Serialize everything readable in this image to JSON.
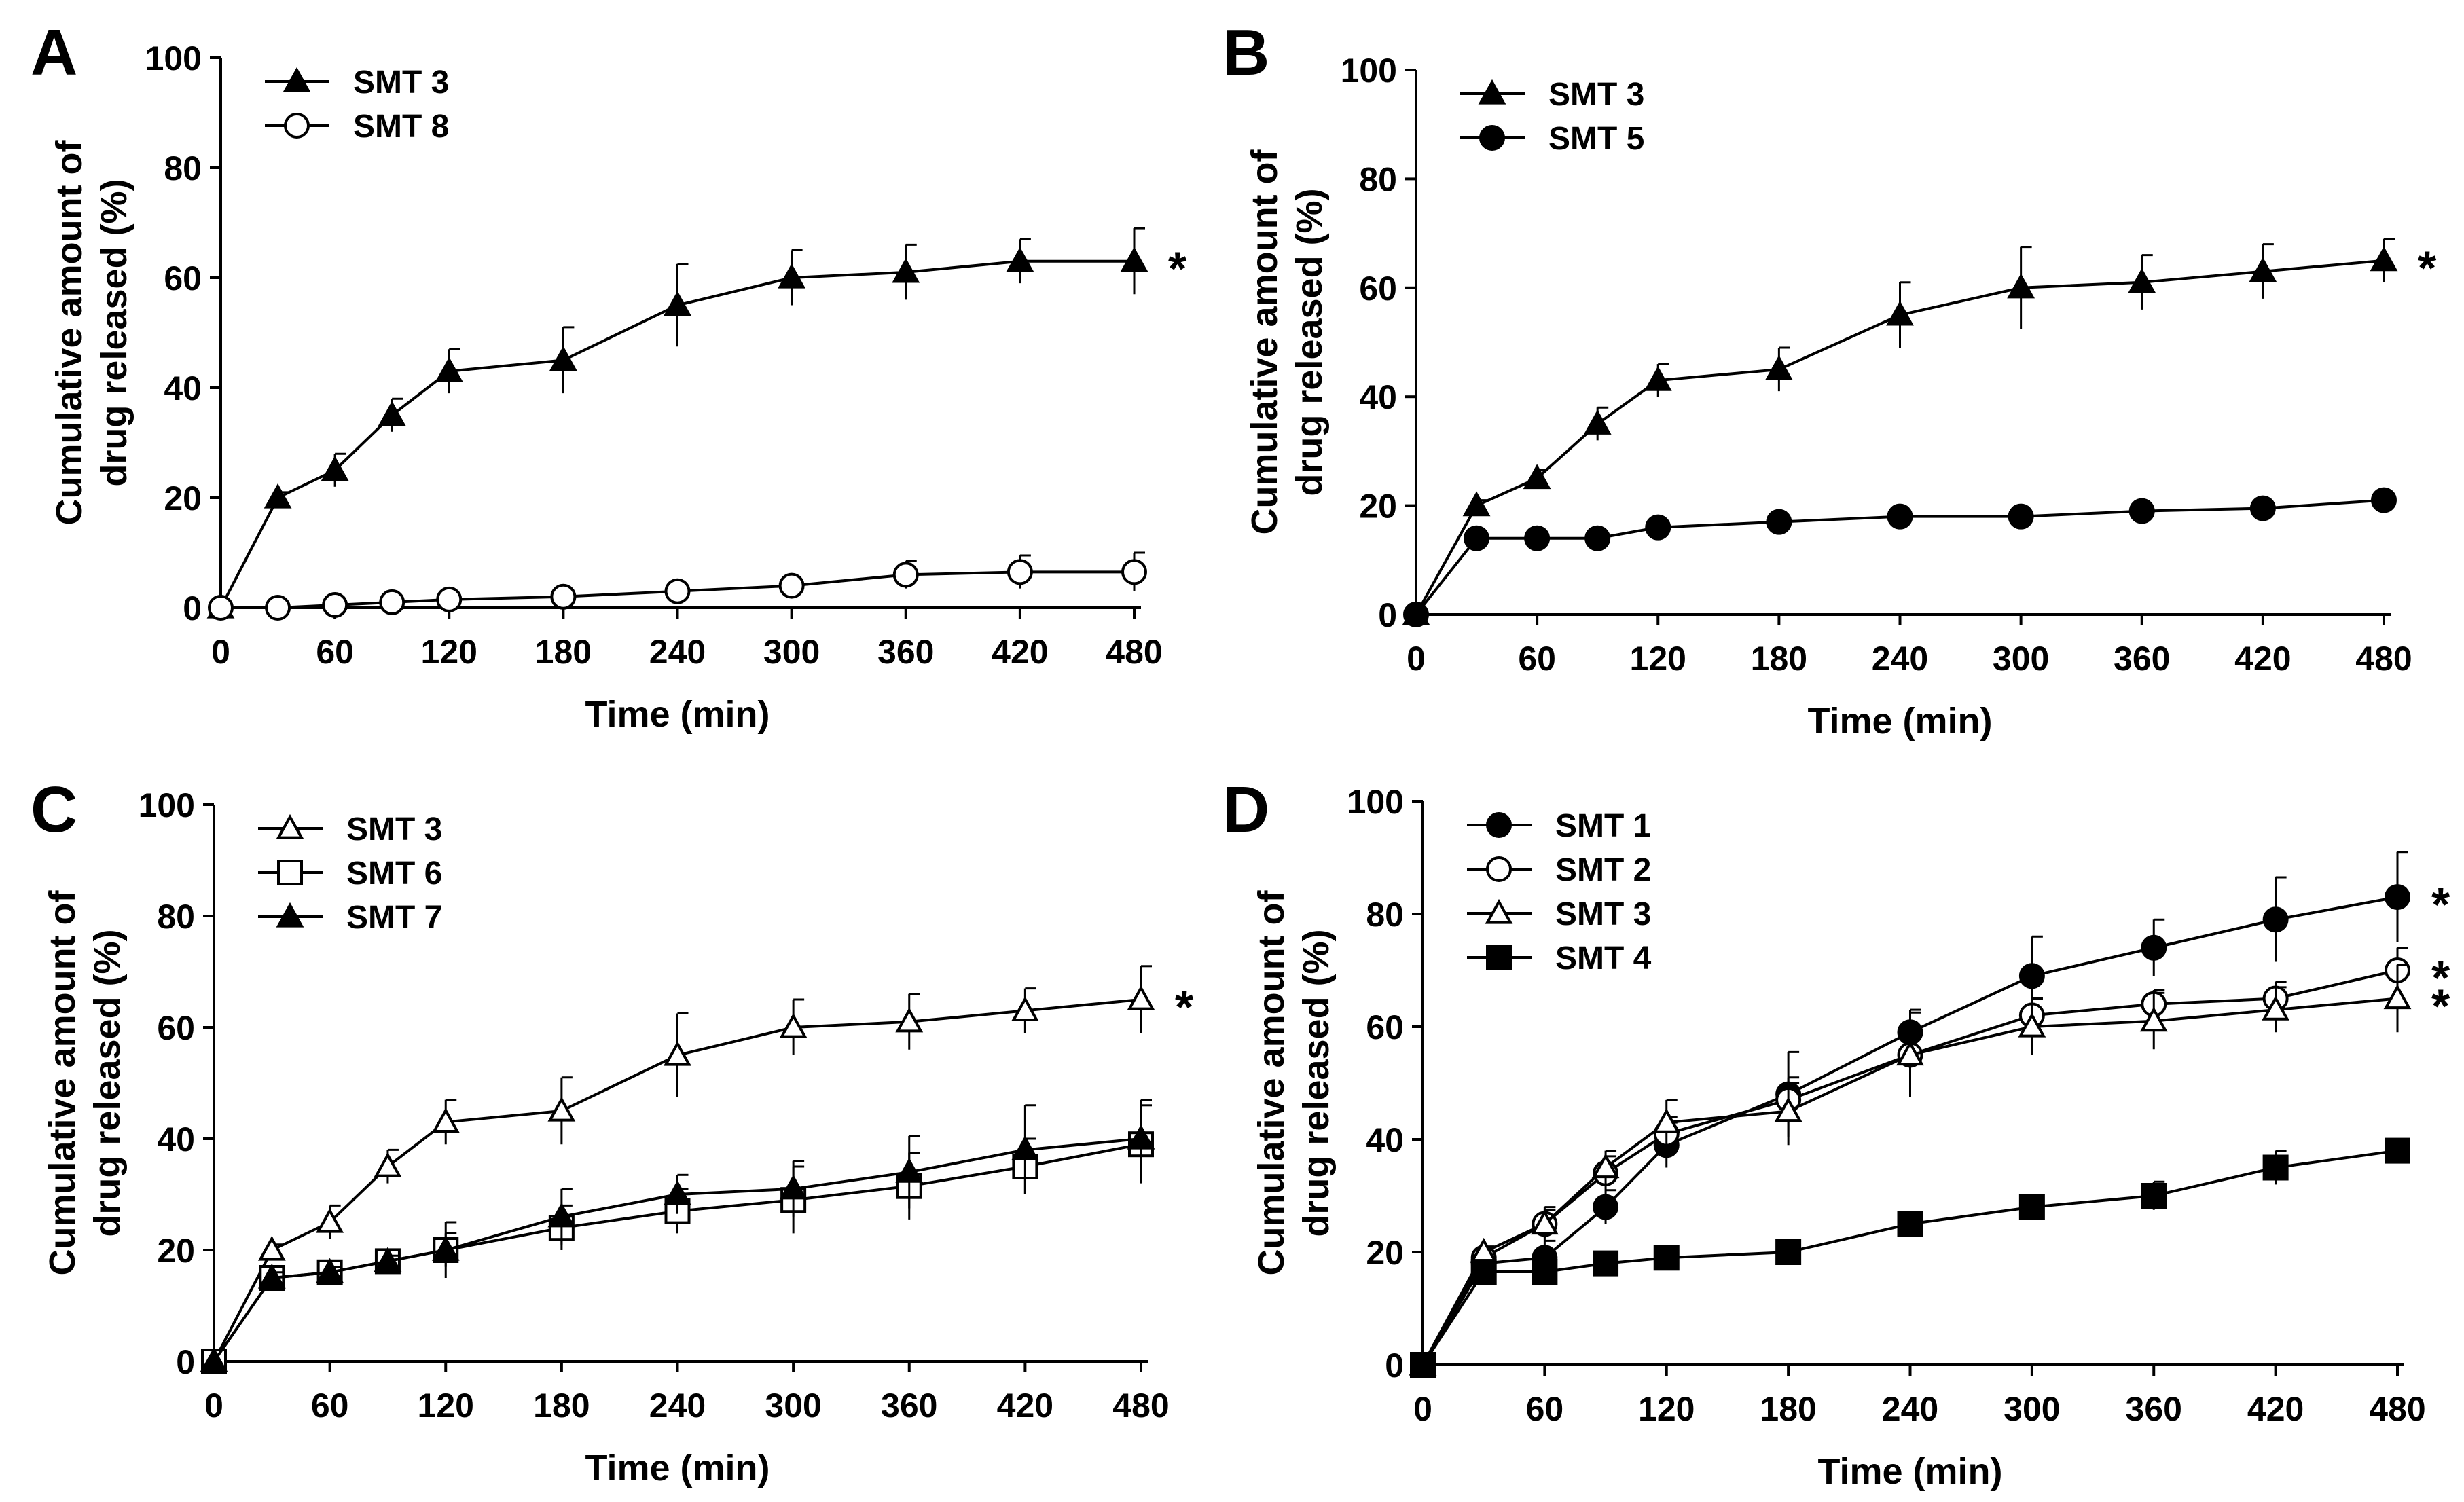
{
  "chart_data": [
    {
      "panel": "A",
      "type": "line",
      "xlabel": "Time (min)",
      "ylabel": [
        "Cumulative amount of",
        "drug released (%)"
      ],
      "xlim": [
        0,
        480
      ],
      "ylim": [
        0,
        100
      ],
      "xticks": [
        0,
        60,
        120,
        180,
        240,
        300,
        360,
        420,
        480
      ],
      "yticks": [
        0,
        20,
        40,
        60,
        80,
        100
      ],
      "legend": "top-left",
      "grid": false,
      "annotations": [
        {
          "text": "*",
          "series": "SMT 3"
        }
      ],
      "series": [
        {
          "name": "SMT 3",
          "marker": "triangle-filled",
          "x": [
            0,
            30,
            60,
            90,
            120,
            180,
            240,
            300,
            360,
            420,
            480
          ],
          "y": [
            0,
            20,
            25,
            35,
            43,
            45,
            55,
            60,
            61,
            63,
            63
          ],
          "err": [
            0,
            1,
            3,
            3,
            4,
            6,
            7.5,
            5,
            5,
            4,
            6
          ]
        },
        {
          "name": "SMT 8",
          "marker": "circle-open",
          "x": [
            0,
            30,
            60,
            90,
            120,
            180,
            240,
            300,
            360,
            420,
            480
          ],
          "y": [
            0,
            0,
            0.5,
            1,
            1.5,
            2,
            3,
            4,
            6,
            6.5,
            6.5
          ],
          "err": [
            0,
            0,
            0.3,
            0.5,
            0.5,
            0.5,
            0.5,
            1,
            2.5,
            3,
            3.5
          ]
        }
      ]
    },
    {
      "panel": "B",
      "type": "line",
      "xlabel": "Time (min)",
      "ylabel": [
        "Cumulative amount of",
        "drug released (%)"
      ],
      "xlim": [
        0,
        480
      ],
      "ylim": [
        0,
        100
      ],
      "xticks": [
        0,
        60,
        120,
        180,
        240,
        300,
        360,
        420,
        480
      ],
      "yticks": [
        0,
        20,
        40,
        60,
        80,
        100
      ],
      "legend": "top-left",
      "grid": false,
      "annotations": [
        {
          "text": "*",
          "series": "SMT 3"
        }
      ],
      "series": [
        {
          "name": "SMT 3",
          "marker": "triangle-filled",
          "x": [
            0,
            30,
            60,
            90,
            120,
            180,
            240,
            300,
            360,
            420,
            480
          ],
          "y": [
            0,
            20,
            25,
            35,
            43,
            45,
            55,
            60,
            61,
            63,
            65
          ],
          "err": [
            0,
            1,
            1.5,
            3,
            3,
            4,
            6,
            7.5,
            5,
            5,
            4
          ]
        },
        {
          "name": "SMT 5",
          "marker": "circle-filled",
          "x": [
            0,
            30,
            60,
            90,
            120,
            180,
            240,
            300,
            360,
            420,
            480
          ],
          "y": [
            0,
            14,
            14,
            14,
            16,
            17,
            18,
            18,
            19,
            19.5,
            21
          ],
          "err": [
            0,
            0.5,
            0.5,
            0.5,
            0.5,
            0.5,
            0.5,
            0.5,
            1,
            0.5,
            0.5
          ]
        }
      ]
    },
    {
      "panel": "C",
      "type": "line",
      "xlabel": "Time (min)",
      "ylabel": [
        "Cumulative amount of",
        "drug released (%)"
      ],
      "xlim": [
        0,
        480
      ],
      "ylim": [
        0,
        100
      ],
      "xticks": [
        0,
        60,
        120,
        180,
        240,
        300,
        360,
        420,
        480
      ],
      "yticks": [
        0,
        20,
        40,
        60,
        80,
        100
      ],
      "legend": "top-left",
      "grid": false,
      "annotations": [
        {
          "text": "*",
          "series": "SMT 3"
        }
      ],
      "series": [
        {
          "name": "SMT 3",
          "marker": "triangle-open",
          "x": [
            0,
            30,
            60,
            90,
            120,
            180,
            240,
            300,
            360,
            420,
            480
          ],
          "y": [
            0,
            20,
            25,
            35,
            43,
            45,
            55,
            60,
            61,
            63,
            65
          ],
          "err": [
            0,
            1,
            3,
            3,
            4,
            6,
            7.5,
            5,
            5,
            4,
            6
          ]
        },
        {
          "name": "SMT 6",
          "marker": "square-open",
          "x": [
            0,
            30,
            60,
            90,
            120,
            180,
            240,
            300,
            360,
            420,
            480
          ],
          "y": [
            0,
            15,
            16,
            18,
            20,
            24,
            27,
            29,
            31.5,
            35,
            39
          ],
          "err": [
            0,
            1,
            1,
            1,
            3,
            4,
            4,
            6,
            6,
            5,
            7
          ]
        },
        {
          "name": "SMT 7",
          "marker": "triangle-filled",
          "x": [
            0,
            30,
            60,
            90,
            120,
            180,
            240,
            300,
            360,
            420,
            480
          ],
          "y": [
            0,
            15,
            16,
            18,
            20,
            26,
            30,
            31,
            34,
            38,
            40
          ],
          "err": [
            0,
            1,
            1,
            1,
            5,
            5,
            3.5,
            5,
            6.5,
            8,
            7
          ]
        }
      ]
    },
    {
      "panel": "D",
      "type": "line",
      "xlabel": "Time (min)",
      "ylabel": [
        "Cumulative amount of",
        "drug released (%)"
      ],
      "xlim": [
        0,
        480
      ],
      "ylim": [
        0,
        100
      ],
      "xticks": [
        0,
        60,
        120,
        180,
        240,
        300,
        360,
        420,
        480
      ],
      "yticks": [
        0,
        20,
        40,
        60,
        80,
        100
      ],
      "legend": "top-left",
      "grid": false,
      "annotations": [
        {
          "text": "*",
          "series": "SMT 1"
        },
        {
          "text": "*",
          "series": "SMT 2"
        },
        {
          "text": "*",
          "series": "SMT 3"
        }
      ],
      "series": [
        {
          "name": "SMT 1",
          "marker": "circle-filled",
          "x": [
            0,
            30,
            60,
            90,
            120,
            180,
            240,
            300,
            360,
            420,
            480
          ],
          "y": [
            0,
            18,
            19,
            28,
            39,
            48,
            59,
            69,
            74,
            79,
            83
          ],
          "err": [
            0,
            2,
            3,
            3,
            4,
            7.5,
            4,
            7,
            5,
            7.5,
            8
          ]
        },
        {
          "name": "SMT 2",
          "marker": "circle-open",
          "x": [
            0,
            30,
            60,
            90,
            120,
            180,
            240,
            300,
            360,
            420,
            480
          ],
          "y": [
            0,
            19,
            25,
            34,
            41,
            47,
            55,
            62,
            64,
            65,
            70
          ],
          "err": [
            0,
            2,
            2.5,
            3,
            3,
            3,
            3,
            3,
            2.5,
            3,
            4
          ]
        },
        {
          "name": "SMT 3",
          "marker": "triangle-open",
          "x": [
            0,
            30,
            60,
            90,
            120,
            180,
            240,
            300,
            360,
            420,
            480
          ],
          "y": [
            0,
            20,
            25,
            35,
            43,
            45,
            55,
            60,
            61,
            63,
            65
          ],
          "err": [
            0,
            1,
            3,
            3,
            4,
            6,
            7.5,
            5,
            5,
            4,
            6
          ]
        },
        {
          "name": "SMT 4",
          "marker": "square-filled",
          "x": [
            0,
            30,
            60,
            90,
            120,
            180,
            240,
            300,
            360,
            420,
            480
          ],
          "y": [
            0,
            16.5,
            16.5,
            18,
            19,
            20,
            25,
            28,
            30,
            35,
            38
          ],
          "err": [
            0,
            1,
            1,
            0.5,
            0.5,
            0.5,
            1,
            1,
            2.5,
            3,
            1.5
          ]
        }
      ]
    }
  ]
}
